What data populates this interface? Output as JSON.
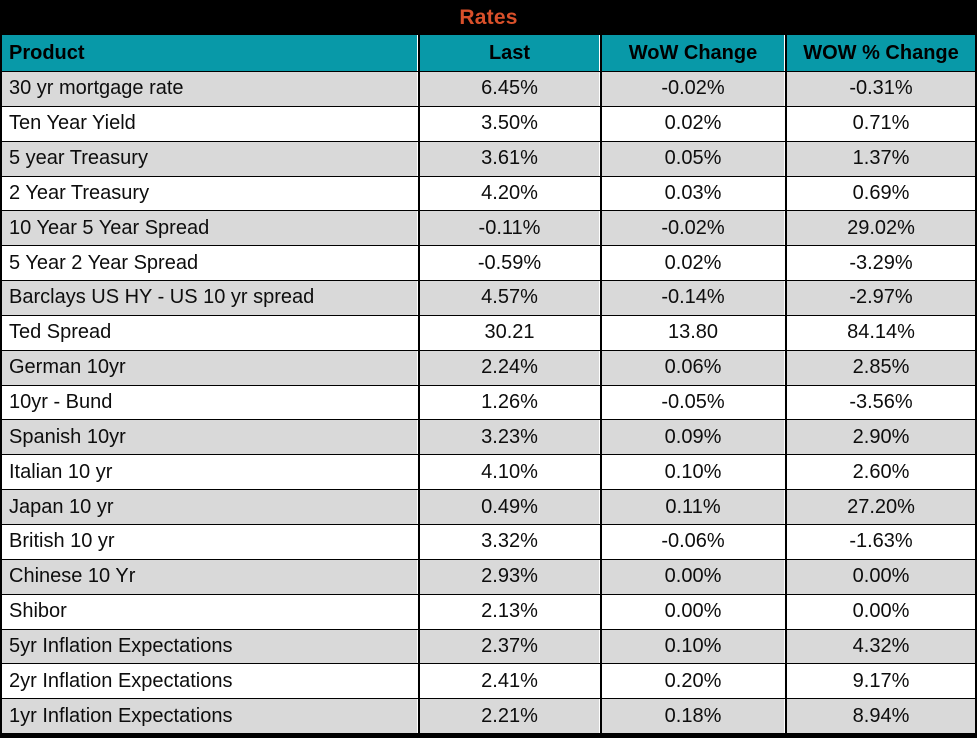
{
  "title_band": {
    "label": "Rates"
  },
  "colors": {
    "frame": "#000000",
    "title_text": "#d9502a",
    "header_bg": "#0899a8",
    "header_text": "#000000",
    "row_alt_bg": "#d9d9d9",
    "row_plain_bg": "#ffffff",
    "data_text": "#0d0d0d"
  },
  "chart_data": {
    "type": "table",
    "title": "Rates",
    "columns": [
      "Product",
      "Last",
      "WoW Change",
      "WOW % Change"
    ],
    "rows": [
      [
        "30 yr mortgage rate",
        "6.45%",
        "-0.02%",
        "-0.31%"
      ],
      [
        "Ten Year Yield",
        "3.50%",
        "0.02%",
        "0.71%"
      ],
      [
        "5 year Treasury",
        "3.61%",
        "0.05%",
        "1.37%"
      ],
      [
        "2 Year Treasury",
        "4.20%",
        "0.03%",
        "0.69%"
      ],
      [
        "10 Year 5 Year Spread",
        "-0.11%",
        "-0.02%",
        "29.02%"
      ],
      [
        "5 Year 2 Year Spread",
        "-0.59%",
        "0.02%",
        "-3.29%"
      ],
      [
        "Barclays US HY - US 10 yr spread",
        "4.57%",
        "-0.14%",
        "-2.97%"
      ],
      [
        "Ted Spread",
        "30.21",
        "13.80",
        "84.14%"
      ],
      [
        "German 10yr",
        "2.24%",
        "0.06%",
        "2.85%"
      ],
      [
        "10yr - Bund",
        "1.26%",
        "-0.05%",
        "-3.56%"
      ],
      [
        "Spanish 10yr",
        "3.23%",
        "0.09%",
        "2.90%"
      ],
      [
        "Italian 10 yr",
        "4.10%",
        "0.10%",
        "2.60%"
      ],
      [
        "Japan 10 yr",
        "0.49%",
        "0.11%",
        "27.20%"
      ],
      [
        "British 10 yr",
        "3.32%",
        "-0.06%",
        "-1.63%"
      ],
      [
        "Chinese 10 Yr",
        "2.93%",
        "0.00%",
        "0.00%"
      ],
      [
        "Shibor",
        "2.13%",
        "0.00%",
        "0.00%"
      ],
      [
        "5yr Inflation Expectations",
        "2.37%",
        "0.10%",
        "4.32%"
      ],
      [
        "2yr Inflation Expectations",
        "2.41%",
        "0.20%",
        "9.17%"
      ],
      [
        "1yr Inflation Expectations",
        "2.21%",
        "0.18%",
        "8.94%"
      ]
    ]
  }
}
